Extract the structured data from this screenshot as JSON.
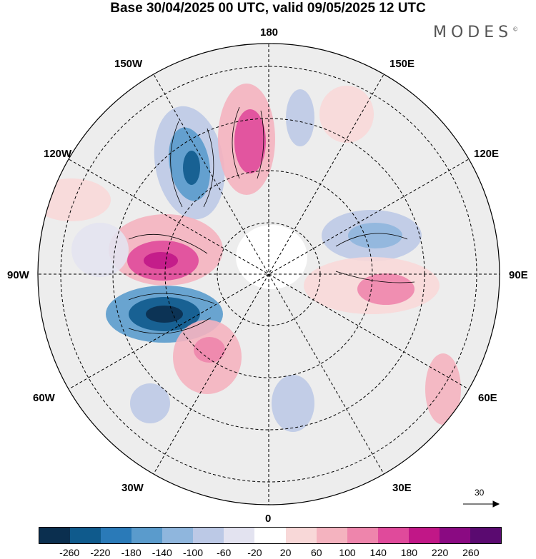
{
  "title": "Base 30/04/2025 00 UTC, valid 09/05/2025 12 UTC",
  "brand": "MODES",
  "brand_mark": "©",
  "longitude_labels": {
    "lon_180": "180",
    "lon_150w": "150W",
    "lon_150e": "150E",
    "lon_120w": "120W",
    "lon_120e": "120E",
    "lon_90w": "90W",
    "lon_90e": "90E",
    "lon_60w": "60W",
    "lon_60e": "60E",
    "lon_30w": "30W",
    "lon_30e": "30E",
    "lon_0": "0"
  },
  "reference_vector": "30",
  "colorbar": {
    "colors": [
      "#0b2f4f",
      "#0f5a8c",
      "#2a7ab8",
      "#5a9bcc",
      "#8fb6dd",
      "#bcc9e6",
      "#e3e3f0",
      "#ffffff",
      "#f8d8d8",
      "#f4b3bf",
      "#ee85ac",
      "#e04a9b",
      "#c11787",
      "#8a0a82",
      "#5a0a70"
    ],
    "ticks": [
      "-260",
      "-220",
      "-180",
      "-140",
      "-100",
      "-60",
      "-20",
      "20",
      "60",
      "100",
      "140",
      "180",
      "220",
      "260"
    ]
  }
}
